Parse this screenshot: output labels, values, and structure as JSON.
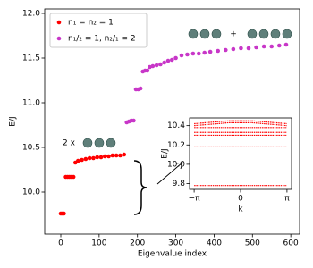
{
  "chart_data": [
    {
      "type": "scatter",
      "x_label": "Eigenvalue index",
      "y_label": "E/J",
      "xlim": [
        -42,
        623
      ],
      "ylim": [
        9.53,
        12.05
      ],
      "xticks": [
        0,
        100,
        200,
        300,
        400,
        500,
        600
      ],
      "yticks": [
        {
          "value": 10,
          "label": "10.0"
        },
        10.5,
        {
          "value": 11,
          "label": "11.0"
        },
        11.5,
        {
          "value": 12,
          "label": "12.0"
        }
      ],
      "grid": false,
      "legend": "upper left",
      "annotations": [
        "2 x",
        "+"
      ],
      "series": [
        {
          "name": "n₁ = n₂ = 1",
          "color": "#ff0000",
          "x": [
            0,
            4,
            8,
            13,
            18,
            23,
            28,
            33,
            38,
            45,
            55,
            65,
            75,
            85,
            95,
            105,
            115,
            125,
            135,
            145,
            155,
            165
          ],
          "values": [
            9.76,
            9.76,
            9.76,
            10.17,
            10.17,
            10.17,
            10.17,
            10.17,
            10.33,
            10.35,
            10.36,
            10.37,
            10.38,
            10.38,
            10.39,
            10.39,
            10.4,
            10.4,
            10.41,
            10.41,
            10.41,
            10.42
          ]
        },
        {
          "name": "n₁/₂ = 1, n₂/₁ = 2",
          "color": "#c837c8",
          "x": [
            172,
            178,
            184,
            190,
            196,
            202,
            208,
            214,
            220,
            226,
            232,
            240,
            250,
            260,
            270,
            280,
            290,
            300,
            315,
            330,
            345,
            360,
            375,
            390,
            410,
            430,
            450,
            470,
            490,
            510,
            530,
            550,
            570,
            588
          ],
          "values": [
            10.78,
            10.79,
            10.8,
            10.8,
            11.15,
            11.15,
            11.16,
            11.35,
            11.36,
            11.36,
            11.4,
            11.41,
            11.42,
            11.43,
            11.45,
            11.47,
            11.48,
            11.5,
            11.53,
            11.54,
            11.55,
            11.55,
            11.56,
            11.57,
            11.58,
            11.59,
            11.6,
            11.61,
            11.61,
            11.62,
            11.63,
            11.63,
            11.64,
            11.65
          ]
        }
      ]
    },
    {
      "type": "line",
      "x_label": "k",
      "y_label": "E/J",
      "xlim": [
        -3.45,
        3.45
      ],
      "ylim": [
        9.74,
        10.48
      ],
      "xticks": [
        {
          "value": -3.14159,
          "label": "−π"
        },
        0,
        {
          "value": 3.14159,
          "label": "π"
        }
      ],
      "yticks": [
        9.8,
        {
          "value": 10,
          "label": "10.0"
        },
        10.2,
        10.4
      ],
      "x": [
        -3.14,
        -2.36,
        -1.57,
        -0.79,
        0,
        0.79,
        1.57,
        2.36,
        3.14
      ],
      "series": [
        {
          "color": "#ff0000",
          "values": [
            9.78,
            9.78,
            9.78,
            9.78,
            9.78,
            9.78,
            9.78,
            9.78,
            9.78
          ]
        },
        {
          "color": "#ff0000",
          "values": [
            10.18,
            10.18,
            10.18,
            10.18,
            10.18,
            10.18,
            10.18,
            10.18,
            10.18
          ]
        },
        {
          "color": "#ff0000",
          "values": [
            10.3,
            10.3,
            10.3,
            10.3,
            10.3,
            10.3,
            10.3,
            10.3,
            10.3
          ]
        },
        {
          "color": "#ff0000",
          "values": [
            10.33,
            10.33,
            10.33,
            10.33,
            10.33,
            10.33,
            10.33,
            10.33,
            10.33
          ]
        },
        {
          "color": "#ff0000",
          "values": [
            10.38,
            10.38,
            10.38,
            10.38,
            10.38,
            10.38,
            10.38,
            10.38,
            10.38
          ]
        },
        {
          "color": "#ff0000",
          "values": [
            10.4,
            10.41,
            10.42,
            10.43,
            10.43,
            10.43,
            10.42,
            10.41,
            10.4
          ]
        },
        {
          "color": "#ff0000",
          "values": [
            10.42,
            10.43,
            10.44,
            10.45,
            10.45,
            10.45,
            10.44,
            10.43,
            10.42
          ]
        }
      ]
    }
  ]
}
